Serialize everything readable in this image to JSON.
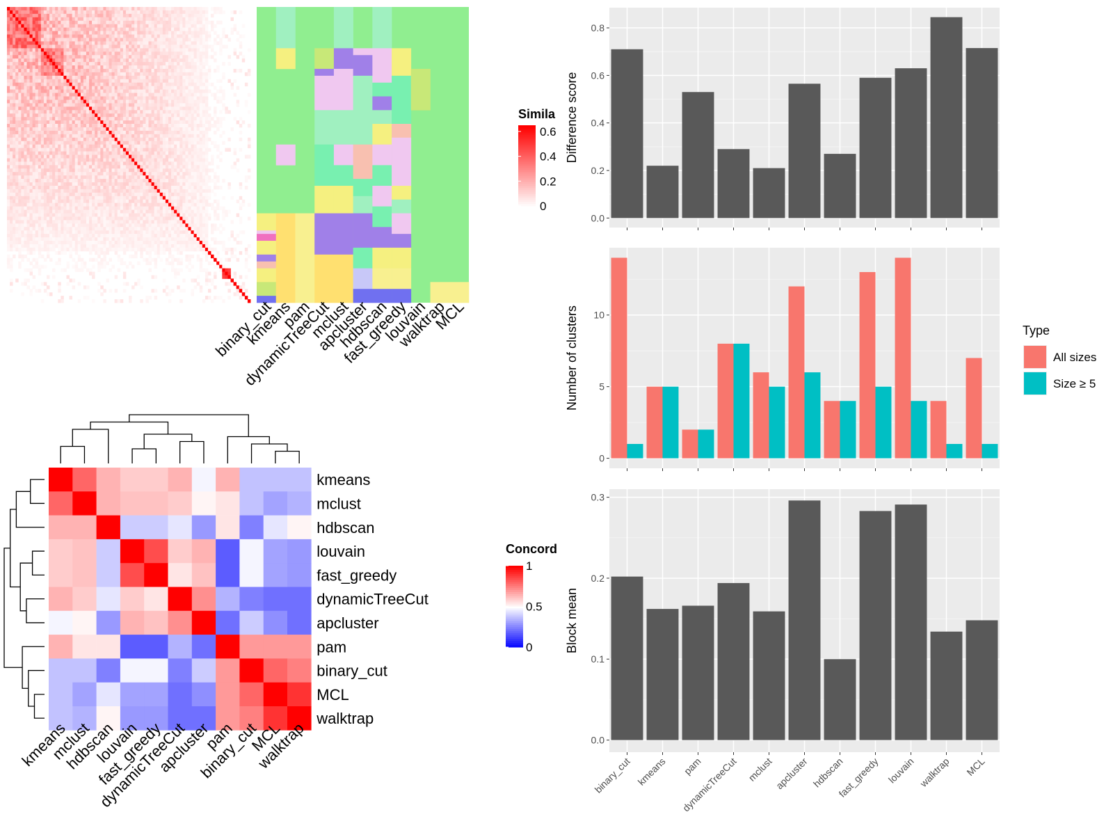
{
  "chart_data": [
    {
      "type": "heatmap",
      "id": "similarity-heatmap",
      "legend_title": "Simila",
      "legend_ticks": [
        "0.6",
        "0.4",
        "0.2",
        "0"
      ],
      "legend_values": [
        0.6,
        0.4,
        0.2,
        0
      ],
      "colors": {
        "low": "#ffffff",
        "high": "#ff0000"
      }
    },
    {
      "type": "heatmap",
      "id": "cluster-assignments",
      "columns": [
        "binary_cut",
        "kmeans",
        "pam",
        "dynamicTreeCut",
        "mclust",
        "apcluster",
        "hdbscan",
        "fast_greedy",
        "louvain",
        "walktrap",
        "MCL"
      ],
      "background": "#90ee90"
    },
    {
      "type": "heatmap",
      "id": "concordance-heatmap",
      "legend_title": "Concord",
      "legend_ticks": [
        "1",
        "0.5",
        "0"
      ],
      "legend_values": [
        1,
        0.5,
        0
      ],
      "rows": [
        "kmeans",
        "mclust",
        "hdbscan",
        "louvain",
        "fast_greedy",
        "dynamicTreeCut",
        "apcluster",
        "pam",
        "binary_cut",
        "MCL",
        "walktrap"
      ],
      "columns": [
        "kmeans",
        "mclust",
        "hdbscan",
        "louvain",
        "fast_greedy",
        "dynamicTreeCut",
        "apcluster",
        "pam",
        "binary_cut",
        "MCL",
        "walktrap"
      ],
      "values": [
        [
          1.0,
          0.8,
          0.65,
          0.6,
          0.6,
          0.65,
          0.48,
          0.65,
          0.38,
          0.38,
          0.38
        ],
        [
          0.8,
          1.0,
          0.65,
          0.62,
          0.62,
          0.6,
          0.52,
          0.55,
          0.38,
          0.32,
          0.35
        ],
        [
          0.65,
          0.65,
          1.0,
          0.4,
          0.4,
          0.45,
          0.3,
          0.55,
          0.25,
          0.45,
          0.52
        ],
        [
          0.6,
          0.62,
          0.4,
          1.0,
          0.85,
          0.6,
          0.65,
          0.18,
          0.48,
          0.32,
          0.3
        ],
        [
          0.6,
          0.62,
          0.4,
          0.85,
          1.0,
          0.55,
          0.62,
          0.18,
          0.48,
          0.32,
          0.3
        ],
        [
          0.65,
          0.6,
          0.45,
          0.6,
          0.55,
          1.0,
          0.72,
          0.35,
          0.25,
          0.22,
          0.22
        ],
        [
          0.48,
          0.52,
          0.3,
          0.65,
          0.62,
          0.72,
          1.0,
          0.22,
          0.4,
          0.28,
          0.22
        ],
        [
          0.65,
          0.55,
          0.55,
          0.18,
          0.18,
          0.35,
          0.22,
          1.0,
          0.7,
          0.7,
          0.7
        ],
        [
          0.38,
          0.38,
          0.25,
          0.48,
          0.48,
          0.25,
          0.4,
          0.7,
          1.0,
          0.8,
          0.75
        ],
        [
          0.38,
          0.32,
          0.45,
          0.32,
          0.32,
          0.22,
          0.28,
          0.7,
          0.8,
          1.0,
          0.9
        ],
        [
          0.38,
          0.35,
          0.52,
          0.3,
          0.3,
          0.22,
          0.22,
          0.7,
          0.75,
          0.9,
          1.0
        ]
      ]
    },
    {
      "type": "bar",
      "id": "difference-score",
      "categories": [
        "binary_cut",
        "kmeans",
        "pam",
        "dynamicTreeCut",
        "mclust",
        "apcluster",
        "hdbscan",
        "fast_greedy",
        "louvain",
        "walktrap",
        "MCL"
      ],
      "values": [
        0.71,
        0.22,
        0.53,
        0.29,
        0.21,
        0.565,
        0.27,
        0.59,
        0.63,
        0.845,
        0.715
      ],
      "ylabel": "Difference score",
      "ylim": [
        -0.04,
        0.885
      ],
      "yticks": [
        0,
        0.2,
        0.4,
        0.6,
        0.8
      ],
      "ytick_labels": [
        "0.0",
        "0.2",
        "0.4",
        "0.6",
        "0.8"
      ]
    },
    {
      "type": "bar",
      "id": "number-of-clusters",
      "categories": [
        "binary_cut",
        "kmeans",
        "pam",
        "dynamicTreeCut",
        "mclust",
        "apcluster",
        "hdbscan",
        "fast_greedy",
        "louvain",
        "walktrap",
        "MCL"
      ],
      "series": [
        {
          "name": "All sizes",
          "color": "#f8766d",
          "values": [
            14,
            5,
            2,
            8,
            6,
            12,
            4,
            13,
            14,
            4,
            7
          ]
        },
        {
          "name": "Size ≥ 5",
          "color": "#00bfc4",
          "values": [
            1,
            5,
            2,
            8,
            5,
            6,
            4,
            5,
            4,
            1,
            1
          ]
        }
      ],
      "ylabel": "Number of clusters",
      "ylim": [
        -0.7,
        14.7
      ],
      "yticks": [
        0,
        5,
        10
      ],
      "ytick_labels": [
        "0",
        "5",
        "10"
      ],
      "legend_title": "Type",
      "legend_position": "right"
    },
    {
      "type": "bar",
      "id": "block-mean",
      "categories": [
        "binary_cut",
        "kmeans",
        "pam",
        "dynamicTreeCut",
        "mclust",
        "apcluster",
        "hdbscan",
        "fast_greedy",
        "louvain",
        "walktrap",
        "MCL"
      ],
      "values": [
        0.202,
        0.162,
        0.166,
        0.194,
        0.159,
        0.296,
        0.1,
        0.283,
        0.291,
        0.134,
        0.148
      ],
      "ylabel": "Block mean",
      "ylim": [
        -0.015,
        0.31
      ],
      "yticks": [
        0,
        0.1,
        0.2,
        0.3
      ],
      "ytick_labels": [
        "0.0",
        "0.1",
        "0.2",
        "0.3"
      ]
    }
  ]
}
